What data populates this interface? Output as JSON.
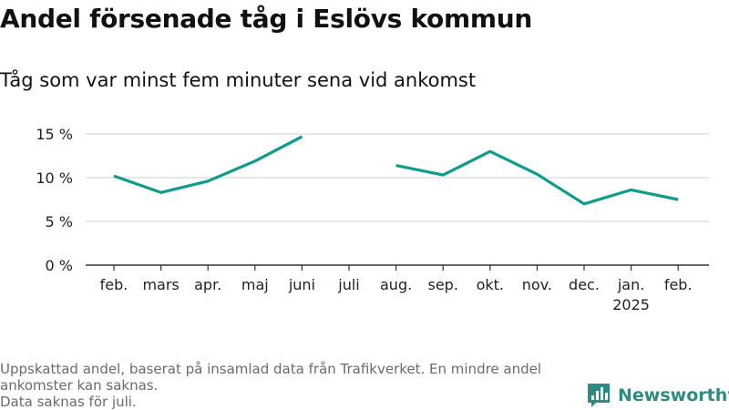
{
  "title": "Andel försenade tåg i Eslövs kommun",
  "subtitle": "Tåg som var minst fem minuter sena vid ankomst",
  "footnote": [
    "Uppskattad andel, baserat på insamlad data från Trafikverket. En mindre andel ankomster kan saknas.",
    "Data saknas för juli."
  ],
  "brand": {
    "name": "Newsworthy",
    "icon": "bar-chart-logo-icon"
  },
  "colors": {
    "line": "#0e9c8e",
    "grid": "#d9d9d9",
    "axis": "#333333",
    "brand": "#2f8a82"
  },
  "chart_data": {
    "type": "line",
    "title": "Andel försenade tåg i Eslövs kommun",
    "subtitle": "Tåg som var minst fem minuter sena vid ankomst",
    "xlabel": "",
    "ylabel": "",
    "categories": [
      "feb.",
      "mars",
      "apr.",
      "maj",
      "juni",
      "juli",
      "aug.",
      "sep.",
      "okt.",
      "nov.",
      "dec.",
      "jan.",
      "feb."
    ],
    "category_sublabels": [
      "",
      "",
      "",
      "",
      "",
      "",
      "",
      "",
      "",
      "",
      "",
      "2025",
      ""
    ],
    "series": [
      {
        "values": [
          10.2,
          8.3,
          9.6,
          11.9,
          14.7,
          null,
          11.4,
          10.3,
          13.0,
          10.4,
          7.0,
          8.6,
          7.5
        ]
      }
    ],
    "yticks": [
      0,
      5,
      10,
      15
    ],
    "ytick_labels": [
      "0 %",
      "5 %",
      "10 %",
      "15 %"
    ],
    "ylim": [
      0,
      15
    ],
    "grid": true,
    "legend": "none"
  }
}
